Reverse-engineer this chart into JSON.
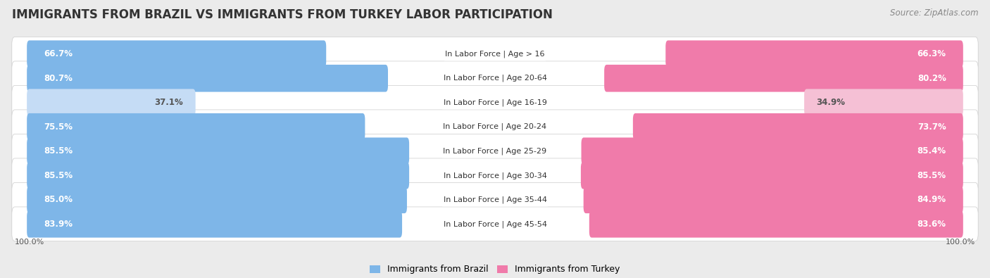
{
  "title": "IMMIGRANTS FROM BRAZIL VS IMMIGRANTS FROM TURKEY LABOR PARTICIPATION",
  "source": "Source: ZipAtlas.com",
  "categories": [
    "In Labor Force | Age > 16",
    "In Labor Force | Age 20-64",
    "In Labor Force | Age 16-19",
    "In Labor Force | Age 20-24",
    "In Labor Force | Age 25-29",
    "In Labor Force | Age 30-34",
    "In Labor Force | Age 35-44",
    "In Labor Force | Age 45-54"
  ],
  "brazil_values": [
    66.7,
    80.7,
    37.1,
    75.5,
    85.5,
    85.5,
    85.0,
    83.9
  ],
  "turkey_values": [
    66.3,
    80.2,
    34.9,
    73.7,
    85.4,
    85.5,
    84.9,
    83.6
  ],
  "brazil_color": "#7EB6E8",
  "brazil_color_light": "#C5DCF5",
  "turkey_color": "#F07BAA",
  "turkey_color_light": "#F5C0D5",
  "bg_color": "#EBEBEB",
  "row_bg": "#FFFFFF",
  "legend_brazil": "Immigrants from Brazil",
  "legend_turkey": "Immigrants from Turkey",
  "title_fontsize": 12,
  "source_fontsize": 8.5,
  "bar_label_fontsize": 8.5,
  "category_fontsize": 8
}
